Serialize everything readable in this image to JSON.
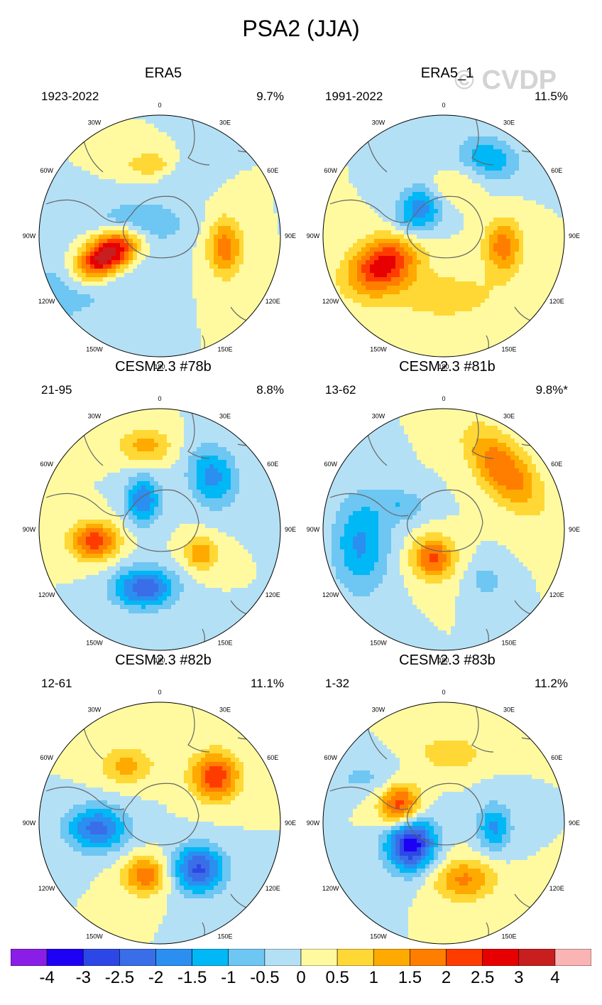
{
  "title": "PSA2 (JJA)",
  "watermark": "© CVDP",
  "lon_labels": [
    "0",
    "30E",
    "60E",
    "90E",
    "120E",
    "150E",
    "180",
    "150W",
    "120W",
    "90W",
    "60W",
    "30W"
  ],
  "panels": [
    {
      "title": "ERA5",
      "period": "1923-2022",
      "pct": "9.7%",
      "blobs": [
        {
          "lon": -110,
          "r": 0.47,
          "v": 4.0,
          "a": 0.2,
          "b": 0.11,
          "rot": -35
        },
        {
          "lon": -8,
          "r": 0.6,
          "v": 1.0,
          "a": 0.14,
          "b": 0.07,
          "rot": 0
        },
        {
          "lon": 100,
          "r": 0.55,
          "v": 1.8,
          "a": 0.1,
          "b": 0.17,
          "rot": 0
        },
        {
          "lon": -55,
          "r": 0.2,
          "v": -1.2,
          "a": 0.25,
          "b": 0.12,
          "rot": 0
        },
        {
          "lon": -120,
          "r": 0.85,
          "v": -1.0,
          "a": 0.4,
          "b": 0.18,
          "rot": -20
        },
        {
          "lon": 20,
          "r": 0.55,
          "v": -0.4,
          "a": 0.14,
          "b": 0.1,
          "rot": 0
        }
      ]
    },
    {
      "title": "ERA5_1",
      "period": "1991-2022",
      "pct": "11.5%",
      "blobs": [
        {
          "lon": -115,
          "r": 0.55,
          "v": 2.8,
          "a": 0.22,
          "b": 0.15,
          "rot": -30
        },
        {
          "lon": 100,
          "r": 0.5,
          "v": 1.8,
          "a": 0.11,
          "b": 0.16,
          "rot": 0
        },
        {
          "lon": -40,
          "r": 0.3,
          "v": -1.9,
          "a": 0.13,
          "b": 0.18,
          "rot": 30
        },
        {
          "lon": 30,
          "r": 0.75,
          "v": -1.4,
          "a": 0.18,
          "b": 0.12,
          "rot": 20
        },
        {
          "lon": 0,
          "r": 0.4,
          "v": 0.9,
          "a": 0.16,
          "b": 0.1,
          "rot": 0
        },
        {
          "lon": 180,
          "r": 0.5,
          "v": 0.8,
          "a": 0.35,
          "b": 0.15,
          "rot": 0
        }
      ]
    },
    {
      "title": "CESM2.3 #78b",
      "period": "21-95",
      "pct": "8.8%",
      "blobs": [
        {
          "lon": -100,
          "r": 0.55,
          "v": 2.3,
          "a": 0.14,
          "b": 0.11,
          "rot": 0
        },
        {
          "lon": -165,
          "r": 0.5,
          "v": -2.4,
          "a": 0.18,
          "b": 0.12,
          "rot": 0
        },
        {
          "lon": 45,
          "r": 0.62,
          "v": -1.7,
          "a": 0.14,
          "b": 0.18,
          "rot": -15
        },
        {
          "lon": -10,
          "r": 0.7,
          "v": 1.2,
          "a": 0.16,
          "b": 0.1,
          "rot": 0
        },
        {
          "lon": -30,
          "r": 0.28,
          "v": -2.0,
          "a": 0.1,
          "b": 0.14,
          "rot": 0
        },
        {
          "lon": 120,
          "r": 0.4,
          "v": 1.4,
          "a": 0.1,
          "b": 0.1,
          "rot": 0
        }
      ]
    },
    {
      "title": "CESM2.3 #81b",
      "period": "13-62",
      "pct": "9.8%*",
      "blobs": [
        {
          "lon": 45,
          "r": 0.7,
          "v": 2.0,
          "a": 0.14,
          "b": 0.28,
          "rot": -40
        },
        {
          "lon": -160,
          "r": 0.25,
          "v": 2.2,
          "a": 0.12,
          "b": 0.12,
          "rot": 0
        },
        {
          "lon": -100,
          "r": 0.7,
          "v": -1.6,
          "a": 0.16,
          "b": 0.28,
          "rot": 0
        },
        {
          "lon": -60,
          "r": 0.4,
          "v": -0.9,
          "a": 0.15,
          "b": 0.1,
          "rot": 0
        },
        {
          "lon": 140,
          "r": 0.55,
          "v": -0.8,
          "a": 0.1,
          "b": 0.1,
          "rot": 0
        }
      ]
    },
    {
      "title": "CESM2.3 #82b",
      "period": "12-61",
      "pct": "11.1%",
      "blobs": [
        {
          "lon": 50,
          "r": 0.6,
          "v": 2.4,
          "a": 0.14,
          "b": 0.14,
          "rot": 0
        },
        {
          "lon": -30,
          "r": 0.55,
          "v": 1.2,
          "a": 0.16,
          "b": 0.11,
          "rot": 0
        },
        {
          "lon": -165,
          "r": 0.45,
          "v": 1.9,
          "a": 0.13,
          "b": 0.11,
          "rot": 0
        },
        {
          "lon": -95,
          "r": 0.52,
          "v": -2.2,
          "a": 0.18,
          "b": 0.13,
          "rot": 0
        },
        {
          "lon": 140,
          "r": 0.5,
          "v": -2.6,
          "a": 0.15,
          "b": 0.14,
          "rot": 0
        }
      ]
    },
    {
      "title": "CESM2.3 #83b",
      "period": "1-32",
      "pct": "11.2%",
      "blobs": [
        {
          "lon": -70,
          "r": 0.38,
          "v": 2.6,
          "a": 0.12,
          "b": 0.14,
          "rot": 0
        },
        {
          "lon": -120,
          "r": 0.32,
          "v": -3.6,
          "a": 0.14,
          "b": 0.16,
          "rot": 0
        },
        {
          "lon": 160,
          "r": 0.5,
          "v": 1.6,
          "a": 0.18,
          "b": 0.12,
          "rot": 0
        },
        {
          "lon": 95,
          "r": 0.42,
          "v": -1.6,
          "a": 0.1,
          "b": 0.14,
          "rot": 0
        },
        {
          "lon": 5,
          "r": 0.58,
          "v": 1.0,
          "a": 0.18,
          "b": 0.1,
          "rot": 0
        },
        {
          "lon": -60,
          "r": 0.75,
          "v": -0.6,
          "a": 0.25,
          "b": 0.1,
          "rot": 0
        }
      ]
    }
  ],
  "colorbar": {
    "labels": [
      "-4",
      "-3",
      "-2.5",
      "-2",
      "-1.5",
      "-1",
      "-0.5",
      "0",
      "0.5",
      "1",
      "1.5",
      "2",
      "2.5",
      "3",
      "4"
    ],
    "colors": [
      "#8a1ee6",
      "#1e00f5",
      "#2d47e6",
      "#3a6ee8",
      "#2a8ff0",
      "#00b8f5",
      "#6ec6f2",
      "#b4e0f5",
      "#fffaa0",
      "#ffd835",
      "#ffaa00",
      "#ff7e00",
      "#ff3c00",
      "#e60000",
      "#c81e1e",
      "#fab4b4"
    ],
    "bounds": [
      -4,
      -3,
      -2.5,
      -2,
      -1.5,
      -1,
      -0.5,
      0,
      0.5,
      1,
      1.5,
      2,
      2.5,
      3,
      4
    ]
  }
}
